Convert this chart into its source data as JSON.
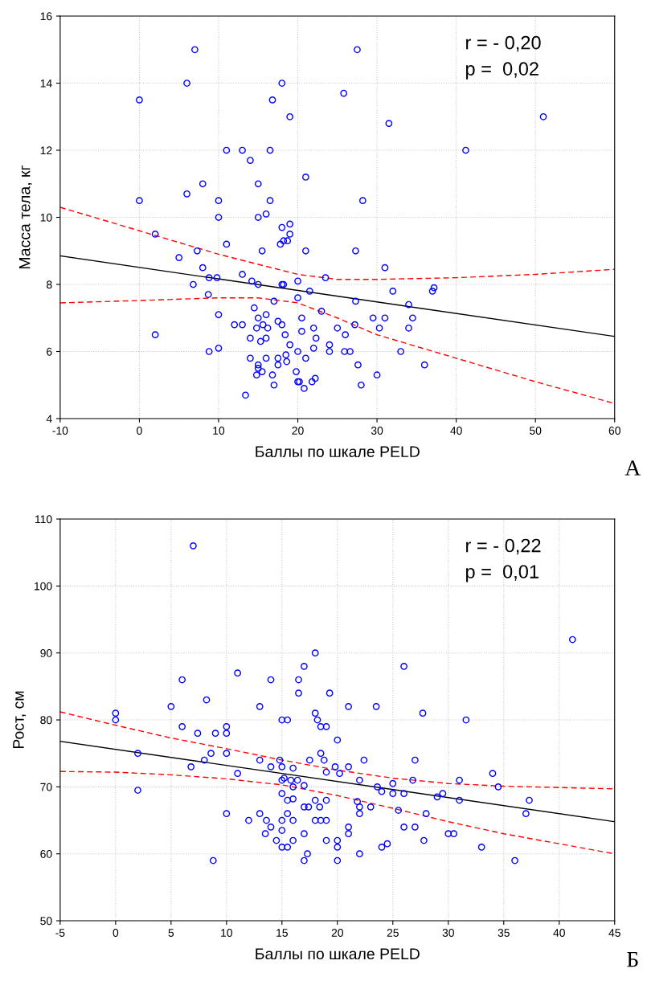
{
  "chart_data": [
    {
      "type": "scatter",
      "xlabel": "Баллы по шкале PELD",
      "ylabel": "Масса тела, кг",
      "xlim": [
        -10,
        60
      ],
      "ylim": [
        4,
        16
      ],
      "xticks": [
        -10,
        0,
        10,
        20,
        30,
        40,
        50,
        60
      ],
      "yticks": [
        4,
        6,
        8,
        10,
        12,
        14,
        16
      ],
      "grid": true,
      "legend": false,
      "annotations": [
        "r = - 0,20",
        "p =  0,02",
        "А"
      ],
      "series": [
        {
          "marker": "circle",
          "color": "#0000ff",
          "x": [
            7,
            27.5,
            6,
            18,
            25.8,
            0,
            16.8,
            19,
            51,
            31.5,
            11,
            13,
            16.5,
            41.2,
            14,
            21,
            8,
            15,
            0,
            6,
            10,
            16.5,
            28.2,
            10,
            15,
            16,
            2,
            19,
            18,
            19,
            18.2,
            18.7,
            17.8,
            11,
            7.3,
            15.5,
            21,
            27.3,
            5,
            8,
            31,
            13,
            23.5,
            9.8,
            8.8,
            15,
            18,
            18.2,
            20,
            6.8,
            14.2,
            37.2,
            37,
            32,
            21.5,
            8.7,
            20,
            17,
            14.5,
            34,
            27.3,
            23,
            15,
            16,
            10,
            20.5,
            29.5,
            31,
            34.5,
            12,
            13,
            17.5,
            18,
            27.2,
            14.8,
            16.2,
            20.5,
            22,
            25,
            30.3,
            34,
            15.6,
            18.4,
            2,
            14,
            15.3,
            16,
            22.3,
            26,
            24,
            19,
            10,
            8.8,
            20,
            25.9,
            33,
            24,
            26.6,
            22,
            14,
            16,
            17.5,
            21,
            18.6,
            15,
            17.5,
            27.6,
            36,
            15,
            15.5,
            19.8,
            18.5,
            14.8,
            16.8,
            30,
            22.2,
            21.8,
            20,
            20.2,
            17,
            28,
            20.8,
            13.4
          ],
          "values": [
            15,
            15,
            14,
            14,
            13.7,
            13.5,
            13.5,
            13,
            13,
            12.8,
            12,
            12,
            12,
            12,
            11.7,
            11.2,
            11,
            11,
            10.5,
            10.7,
            10.5,
            10.5,
            10.5,
            10,
            10,
            10.1,
            9.5,
            9.8,
            9.7,
            9.5,
            9.3,
            9.3,
            9.2,
            9.2,
            9,
            9,
            9,
            9,
            8.8,
            8.5,
            8.5,
            8.3,
            8.2,
            8.2,
            8.2,
            8,
            8,
            8,
            8.1,
            8,
            8.1,
            7.9,
            7.8,
            7.8,
            7.8,
            7.7,
            7.6,
            7.5,
            7.3,
            7.4,
            7.5,
            7.2,
            7,
            7.1,
            7.1,
            7,
            7,
            7,
            7,
            6.8,
            6.8,
            6.9,
            6.8,
            6.8,
            6.7,
            6.7,
            6.6,
            6.7,
            6.7,
            6.7,
            6.7,
            6.8,
            6.5,
            6.5,
            6.4,
            6.3,
            6.4,
            6.4,
            6.5,
            6.2,
            6.2,
            6.1,
            6,
            6,
            6,
            6,
            6,
            6,
            6.1,
            5.8,
            5.8,
            5.8,
            5.8,
            5.7,
            5.6,
            5.6,
            5.6,
            5.6,
            5.5,
            5.4,
            5.4,
            5.9,
            5.3,
            5.3,
            5.3,
            5.2,
            5.1,
            5.1,
            5.1,
            5,
            5,
            4.9,
            4.7
          ]
        },
        {
          "type": "line",
          "color": "#000000",
          "line_style": "solid",
          "x": [
            -10,
            60
          ],
          "values": [
            8.85,
            6.45
          ]
        },
        {
          "type": "line",
          "color": "#ff0000",
          "line_style": "dashed",
          "x": [
            -10,
            0,
            10,
            20,
            25,
            30,
            40,
            50,
            60
          ],
          "values": [
            10.3,
            9.6,
            8.9,
            8.3,
            8.15,
            8.15,
            8.2,
            8.3,
            8.45
          ]
        },
        {
          "type": "line",
          "color": "#ff0000",
          "line_style": "dashed",
          "x": [
            -10,
            0,
            10,
            15,
            20,
            25,
            30,
            40,
            50,
            60
          ],
          "values": [
            7.45,
            7.52,
            7.6,
            7.6,
            7.45,
            7.0,
            6.5,
            5.8,
            5.1,
            4.45
          ]
        }
      ]
    },
    {
      "type": "scatter",
      "xlabel": "Баллы по шкале PELD",
      "ylabel": "Рост, см",
      "xlim": [
        -5,
        45
      ],
      "ylim": [
        50,
        110
      ],
      "xticks": [
        -5,
        0,
        5,
        10,
        15,
        20,
        25,
        30,
        35,
        40,
        45
      ],
      "yticks": [
        50,
        60,
        70,
        80,
        90,
        100,
        110
      ],
      "grid": true,
      "legend": false,
      "annotations": [
        "r = - 0,22",
        "p =  0,01",
        "Б"
      ],
      "series": [
        {
          "marker": "circle",
          "color": "#0000ff",
          "x": [
            7,
            41.2,
            18,
            26,
            17,
            11,
            6,
            14,
            16.5,
            19.3,
            16.5,
            8.2,
            5,
            13,
            21,
            23.5,
            0,
            27.7,
            18,
            0,
            15,
            15.5,
            31.6,
            18.2,
            6,
            10,
            18.5,
            19,
            9,
            10,
            7.4,
            20,
            2,
            8.6,
            10,
            18.5,
            13,
            14.8,
            17.5,
            18.8,
            22.4,
            27,
            6.8,
            8,
            14,
            15,
            16,
            19.8,
            21,
            19,
            15.2,
            11,
            16.4,
            20.2,
            25,
            26.8,
            22,
            31,
            34,
            37.3,
            15,
            15.8,
            16,
            17,
            23.6,
            24,
            25,
            26,
            29.5,
            34.5,
            2,
            15,
            15.5,
            16,
            18,
            19,
            21.8,
            22,
            25.5,
            28,
            37,
            15.5,
            10,
            13,
            17,
            17.4,
            18.4,
            23,
            29,
            31,
            12,
            13.6,
            15,
            16,
            18,
            18.5,
            19,
            21,
            22,
            26,
            27,
            14,
            15,
            13.5,
            14.5,
            16,
            17,
            19,
            20,
            21,
            24.5,
            30,
            30.5,
            33,
            15,
            15.5,
            20,
            24,
            8.8,
            17,
            17.3,
            20,
            22,
            27.8,
            36
          ],
          "values": [
            106,
            92,
            90,
            88,
            88,
            87,
            86,
            86,
            86,
            84,
            84,
            83,
            82,
            82,
            82,
            82,
            81,
            81,
            81,
            80,
            80,
            80,
            80,
            80,
            79,
            79,
            79,
            79,
            78,
            78,
            78,
            77,
            75,
            75,
            75,
            75,
            74,
            74,
            74,
            74,
            74,
            74,
            73,
            74,
            73,
            73,
            72.8,
            73,
            73,
            72.2,
            71.3,
            72,
            71,
            72,
            70.5,
            71,
            71,
            71,
            72,
            68,
            71,
            71,
            70,
            70.2,
            70,
            69.3,
            69,
            69,
            69,
            70,
            69.5,
            69,
            68,
            68.2,
            68,
            68,
            67.8,
            67,
            66.5,
            66,
            66,
            66,
            66,
            66,
            67,
            67,
            67,
            67,
            68.5,
            68,
            65,
            65,
            65,
            65,
            65,
            65,
            65,
            64,
            66,
            64,
            64,
            64,
            63.5,
            63,
            62,
            62,
            63,
            62,
            62,
            63,
            61.5,
            63,
            63,
            61,
            61,
            61,
            61,
            61,
            59,
            59,
            60,
            59,
            60,
            62,
            59
          ]
        },
        {
          "type": "line",
          "color": "#000000",
          "line_style": "solid",
          "x": [
            -5,
            45
          ],
          "values": [
            76.8,
            64.8
          ]
        },
        {
          "type": "line",
          "color": "#ff0000",
          "line_style": "dashed",
          "x": [
            -5,
            0,
            5,
            10,
            15,
            20,
            25,
            30,
            35,
            40,
            45
          ],
          "values": [
            81.2,
            79.2,
            77.3,
            75.7,
            74,
            72.5,
            71.3,
            70.5,
            70.1,
            69.9,
            69.7
          ]
        },
        {
          "type": "line",
          "color": "#ff0000",
          "line_style": "dashed",
          "x": [
            -5,
            0,
            5,
            10,
            15,
            20,
            25,
            30,
            35,
            40,
            45
          ],
          "values": [
            72.3,
            72.2,
            71.8,
            71.2,
            70.3,
            68.7,
            66.8,
            64.8,
            63,
            61.5,
            60
          ]
        }
      ]
    }
  ]
}
